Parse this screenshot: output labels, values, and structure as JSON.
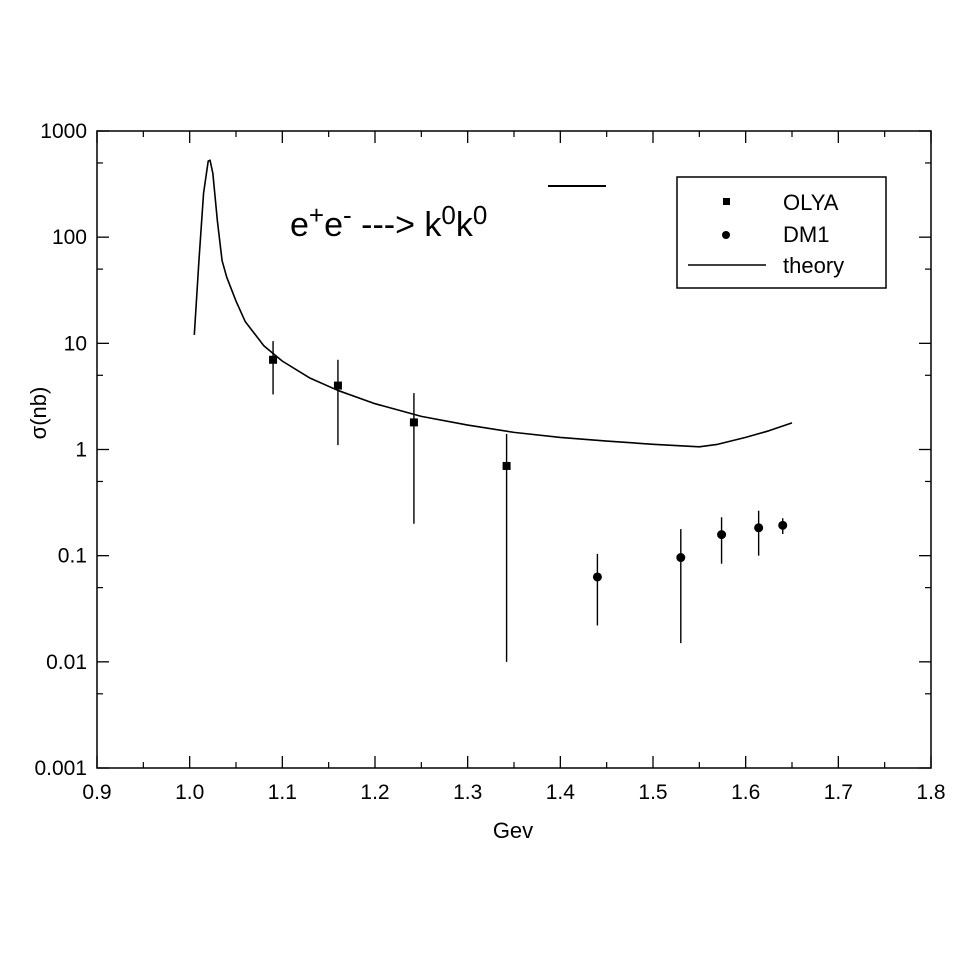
{
  "chart_data": {
    "type": "scatter",
    "title": {
      "base": "e",
      "sup1": "+",
      "mid": "e",
      "sup2": "-",
      "arrow": " ---> k",
      "sup3": "0",
      "bar_k": "k",
      "sup4": "0"
    },
    "xlabel": "Gev",
    "ylabel": "σ(nb)",
    "xlim": [
      0.9,
      1.8
    ],
    "ylim": [
      0.001,
      1000
    ],
    "yscale": "log",
    "grid": false,
    "legend_placement": "top-right",
    "x_ticks": [
      {
        "value": 0.9,
        "label": "0.9"
      },
      {
        "value": 1.0,
        "label": "1.0"
      },
      {
        "value": 1.1,
        "label": "1.1"
      },
      {
        "value": 1.2,
        "label": "1.2"
      },
      {
        "value": 1.3,
        "label": "1.3"
      },
      {
        "value": 1.4,
        "label": "1.4"
      },
      {
        "value": 1.5,
        "label": "1.5"
      },
      {
        "value": 1.6,
        "label": "1.6"
      },
      {
        "value": 1.7,
        "label": "1.7"
      },
      {
        "value": 1.8,
        "label": "1.8"
      }
    ],
    "y_ticks": [
      {
        "value": 0.001,
        "label": "0.001"
      },
      {
        "value": 0.01,
        "label": "0.01"
      },
      {
        "value": 0.1,
        "label": "0.1"
      },
      {
        "value": 1,
        "label": "1"
      },
      {
        "value": 10,
        "label": "10"
      },
      {
        "value": 100,
        "label": "100"
      },
      {
        "value": 1000,
        "label": "1000"
      }
    ],
    "series": [
      {
        "name": "OLYA",
        "marker": "square",
        "points": [
          {
            "x": 1.09,
            "y": 7.0,
            "ylo": 3.3,
            "yhi": 10.5
          },
          {
            "x": 1.16,
            "y": 4.0,
            "ylo": 1.1,
            "yhi": 7.0
          },
          {
            "x": 1.242,
            "y": 1.8,
            "ylo": 0.2,
            "yhi": 3.4
          },
          {
            "x": 1.342,
            "y": 0.7,
            "ylo": 0.01,
            "yhi": 1.4
          }
        ]
      },
      {
        "name": "DM1",
        "marker": "circle",
        "points": [
          {
            "x": 1.44,
            "y": 0.063,
            "ylo": 0.022,
            "yhi": 0.104
          },
          {
            "x": 1.53,
            "y": 0.096,
            "ylo": 0.015,
            "yhi": 0.178
          },
          {
            "x": 1.574,
            "y": 0.158,
            "ylo": 0.084,
            "yhi": 0.23
          },
          {
            "x": 1.614,
            "y": 0.183,
            "ylo": 0.1,
            "yhi": 0.265
          },
          {
            "x": 1.64,
            "y": 0.193,
            "ylo": 0.16,
            "yhi": 0.225
          }
        ]
      },
      {
        "name": "theory",
        "marker": "line",
        "points": [
          {
            "x": 1.005,
            "y": 12
          },
          {
            "x": 1.01,
            "y": 60
          },
          {
            "x": 1.015,
            "y": 260
          },
          {
            "x": 1.02,
            "y": 520
          },
          {
            "x": 1.022,
            "y": 530
          },
          {
            "x": 1.025,
            "y": 400
          },
          {
            "x": 1.03,
            "y": 140
          },
          {
            "x": 1.035,
            "y": 60
          },
          {
            "x": 1.04,
            "y": 42
          },
          {
            "x": 1.05,
            "y": 25
          },
          {
            "x": 1.06,
            "y": 16
          },
          {
            "x": 1.08,
            "y": 9.5
          },
          {
            "x": 1.1,
            "y": 6.8
          },
          {
            "x": 1.13,
            "y": 4.7
          },
          {
            "x": 1.16,
            "y": 3.6
          },
          {
            "x": 1.2,
            "y": 2.7
          },
          {
            "x": 1.25,
            "y": 2.05
          },
          {
            "x": 1.3,
            "y": 1.7
          },
          {
            "x": 1.35,
            "y": 1.45
          },
          {
            "x": 1.4,
            "y": 1.3
          },
          {
            "x": 1.45,
            "y": 1.2
          },
          {
            "x": 1.5,
            "y": 1.12
          },
          {
            "x": 1.55,
            "y": 1.06
          },
          {
            "x": 1.57,
            "y": 1.12
          },
          {
            "x": 1.6,
            "y": 1.3
          },
          {
            "x": 1.625,
            "y": 1.5
          },
          {
            "x": 1.65,
            "y": 1.78
          }
        ]
      }
    ]
  }
}
